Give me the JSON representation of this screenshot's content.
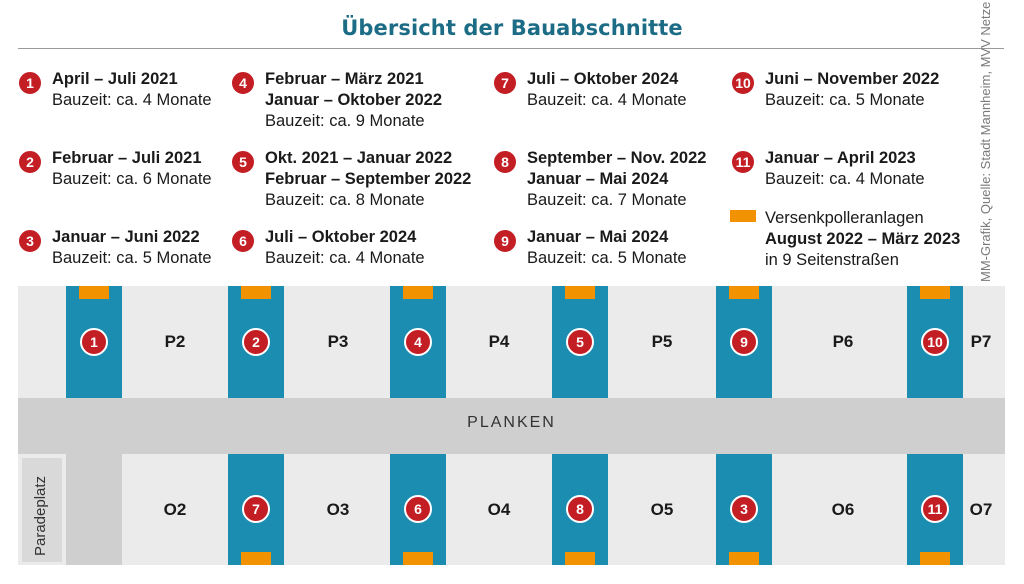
{
  "title": "Übersicht der Bauabschnitte",
  "source_credit": "MM-Grafik, Quelle: Stadt Mannheim, MVV Netze",
  "colors": {
    "title": "#1c6c86",
    "badge": "#c41e25",
    "segment": "#1b8db1",
    "poller": "#f39200",
    "street": "#cfcfcf",
    "block": "#ebebeb"
  },
  "entries": [
    {
      "num": "1",
      "lines": [
        "April – Juli 2021",
        "Bauzeit: ca. 4 Monate"
      ]
    },
    {
      "num": "2",
      "lines": [
        "Februar – Juli 2021",
        "Bauzeit: ca. 6 Monate"
      ]
    },
    {
      "num": "3",
      "lines": [
        "Januar –  Juni 2022",
        "Bauzeit: ca. 5 Monate"
      ]
    },
    {
      "num": "4",
      "lines": [
        "Februar – März 2021",
        "Januar – Oktober 2022",
        "Bauzeit: ca. 9 Monate"
      ]
    },
    {
      "num": "5",
      "lines": [
        "Okt. 2021 – Januar 2022",
        "Februar – September 2022",
        "Bauzeit: ca. 8 Monate"
      ]
    },
    {
      "num": "6",
      "lines": [
        "Juli – Oktober 2024",
        "Bauzeit: ca. 4 Monate"
      ]
    },
    {
      "num": "7",
      "lines": [
        "Juli – Oktober 2024",
        "Bauzeit: ca. 4 Monate"
      ]
    },
    {
      "num": "8",
      "lines": [
        "September – Nov. 2022",
        "Januar – Mai 2024",
        "Bauzeit: ca. 7 Monate"
      ]
    },
    {
      "num": "9",
      "lines": [
        "Januar – Mai 2024",
        "Bauzeit: ca. 5 Monate"
      ]
    },
    {
      "num": "10",
      "lines": [
        "Juni – November 2022",
        "Bauzeit: ca. 5 Monate"
      ]
    },
    {
      "num": "11",
      "lines": [
        "Januar – April 2023",
        "Bauzeit: ca. 4 Monate"
      ]
    }
  ],
  "legend": {
    "lines": [
      "Versenkpolleranlagen",
      "August 2022 – März 2023",
      "in 9 Seitenstraßen"
    ]
  },
  "map": {
    "street_label": "PLANKEN",
    "square_label": "Paradeplatz",
    "top_blocks": [
      "P2",
      "P3",
      "P4",
      "P5",
      "P6",
      "P7"
    ],
    "bottom_blocks": [
      "O2",
      "O3",
      "O4",
      "O5",
      "O6",
      "O7"
    ],
    "top_segments": [
      "1",
      "2",
      "4",
      "5",
      "9",
      "10"
    ],
    "bottom_segments": [
      "7",
      "6",
      "8",
      "3",
      "11"
    ]
  }
}
